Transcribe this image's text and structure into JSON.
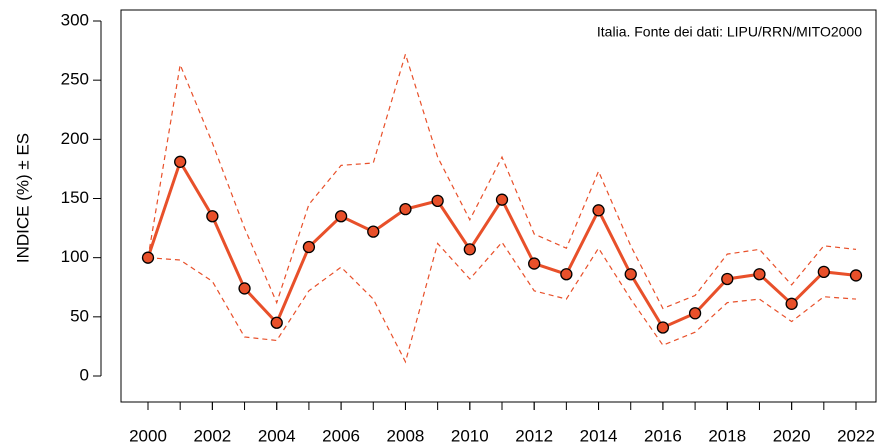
{
  "chart_data": {
    "type": "line",
    "annotation": "Italia. Fonte dei dati: LIPU/RRN/MITO2000",
    "y_label": "INDICE (%) ± ES",
    "x": [
      2000,
      2001,
      2002,
      2003,
      2004,
      2005,
      2006,
      2007,
      2008,
      2009,
      2010,
      2011,
      2012,
      2013,
      2014,
      2015,
      2016,
      2017,
      2018,
      2019,
      2020,
      2021,
      2022
    ],
    "series": [
      {
        "color": "#e8502a",
        "style": "solid",
        "markers": true,
        "values": [
          100,
          181,
          135,
          74,
          45,
          109,
          135,
          122,
          141,
          148,
          107,
          149,
          95,
          86,
          140,
          86,
          41,
          53,
          82,
          86,
          61,
          88,
          85
        ]
      },
      {
        "color": "#e8502a",
        "style": "dashed",
        "markers": false,
        "values": [
          100,
          263,
          197,
          125,
          62,
          145,
          178,
          180,
          272,
          185,
          132,
          185,
          120,
          108,
          173,
          110,
          57,
          68,
          103,
          107,
          77,
          110,
          107
        ]
      },
      {
        "color": "#e8502a",
        "style": "dashed",
        "markers": false,
        "values": [
          100,
          98,
          80,
          33,
          30,
          72,
          92,
          65,
          12,
          112,
          82,
          113,
          72,
          65,
          108,
          65,
          26,
          37,
          62,
          65,
          46,
          67,
          65
        ]
      }
    ],
    "xlim": [
      2000,
      2022
    ],
    "xticks": [
      2000,
      2002,
      2004,
      2006,
      2008,
      2010,
      2012,
      2014,
      2016,
      2018,
      2020,
      2022
    ],
    "ylim": [
      0,
      300
    ],
    "yticks": [
      0,
      50,
      100,
      150,
      200,
      250,
      300
    ]
  }
}
